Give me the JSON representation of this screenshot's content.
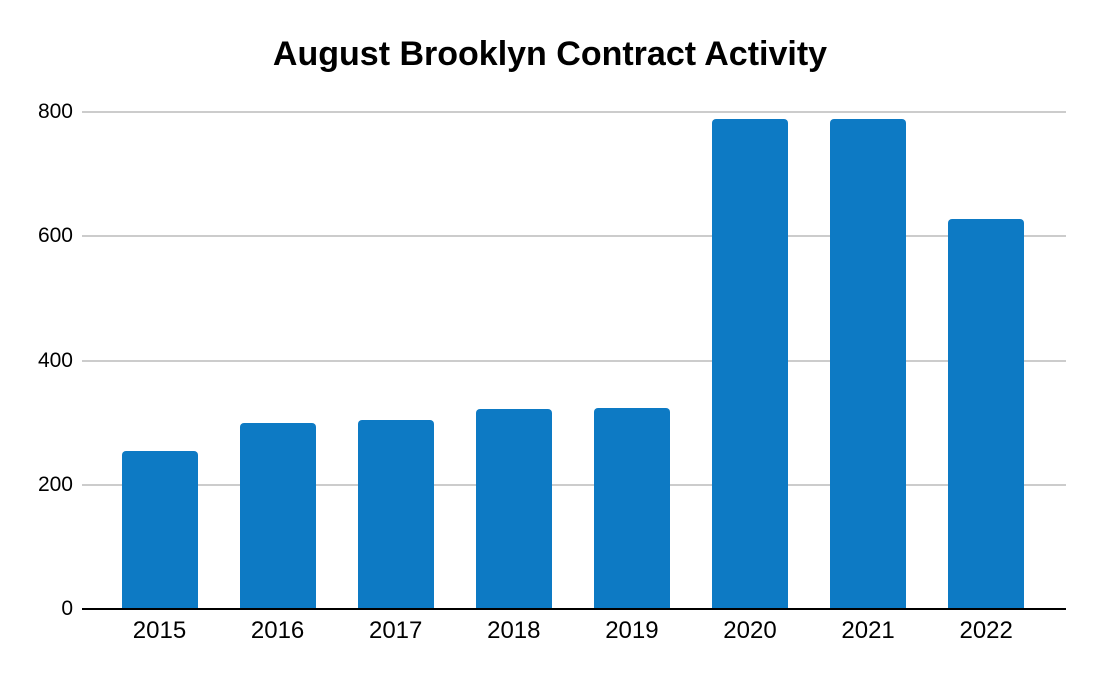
{
  "page": {
    "background_color": "#ffffff"
  },
  "chart_data": {
    "type": "bar",
    "title": "August Brooklyn Contract Activity",
    "categories": [
      "2015",
      "2016",
      "2017",
      "2018",
      "2019",
      "2020",
      "2021",
      "2022"
    ],
    "values": [
      255,
      299,
      305,
      322,
      323,
      788,
      788,
      627
    ],
    "xlabel": "",
    "ylabel": "",
    "ylim": [
      0,
      800
    ],
    "yticks": [
      0,
      200,
      400,
      600,
      800
    ],
    "ytick_labels": [
      "0",
      "200",
      "400",
      "600",
      "800"
    ],
    "grid": true,
    "legend_position": "none",
    "bar_color": "#0d7ac4",
    "gridline_color": "#cccccc",
    "axis_color": "#000000",
    "text_color": "#000000"
  }
}
